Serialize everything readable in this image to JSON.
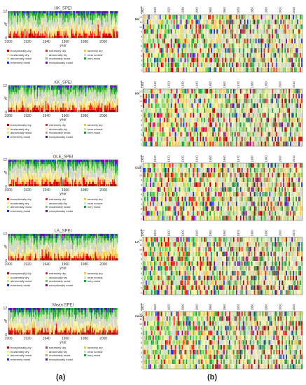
{
  "figure": {
    "label_a": "(a)",
    "label_b": "(b)"
  },
  "colors": {
    "exceptionally dry": "#c00000",
    "extremely dry": "#ff2020",
    "severely dry": "#f7c64a",
    "moderately dry": "#fde78f",
    "abnormally dry": "#f5f5b0",
    "near normal": "#d6d6d6",
    "abnormally moist": "#c5e7a0",
    "moderately moist": "#6fcf5a",
    "very moist": "#1ea040",
    "extremely moist": "#2233cc",
    "exceptionally moist": "#8b00b5"
  },
  "legend": {
    "items": [
      "exceptionally dry",
      "extremely dry",
      "severely dry",
      "moderately dry",
      "abnormally dry",
      "near normal",
      "abnormally moist",
      "moderately moist",
      "very moist",
      "extremely moist",
      "exceptionally moist"
    ]
  },
  "months": [
    "12",
    "11",
    "10",
    "9",
    "8",
    "7",
    "6",
    "5",
    "4",
    "3",
    "2",
    "1"
  ],
  "heatmap_year_ticks": [
    "1901",
    "1910",
    "1920",
    "1930",
    "1940",
    "1950",
    "1960",
    "1970",
    "1980",
    "1990",
    "2000",
    "2010"
  ],
  "heatmap_header": "month",
  "chart_data": [
    {
      "type": "area",
      "title": "HK_SPEI",
      "xlabel": "year",
      "ylabel": "n",
      "xlim": [
        1900,
        2015
      ],
      "ylim": [
        0,
        12
      ],
      "x_ticks": [
        "1900",
        "1920",
        "1940",
        "1960",
        "1980",
        "2000"
      ],
      "y_ticks": [
        "0",
        "6",
        "12"
      ],
      "stacked_order": [
        "exceptionally dry",
        "extremely dry",
        "severely dry",
        "moderately dry",
        "abnormally dry",
        "near normal",
        "abnormally moist",
        "moderately moist",
        "very moist",
        "extremely moist",
        "exceptionally moist"
      ],
      "grid": false,
      "seed": 11
    },
    {
      "type": "area",
      "title": "KK_SPEI",
      "xlabel": "year",
      "ylabel": "n",
      "xlim": [
        1900,
        2015
      ],
      "ylim": [
        0,
        12
      ],
      "x_ticks": [
        "1900",
        "1920",
        "1940",
        "1960",
        "1980",
        "2000"
      ],
      "y_ticks": [
        "0",
        "6",
        "12"
      ],
      "grid": false,
      "seed": 23
    },
    {
      "type": "area",
      "title": "OLE_SPEI",
      "xlabel": "year",
      "ylabel": "n",
      "xlim": [
        1900,
        2015
      ],
      "ylim": [
        0,
        12
      ],
      "x_ticks": [
        "1900",
        "1920",
        "1940",
        "1960",
        "1980",
        "2000"
      ],
      "y_ticks": [
        "0",
        "6",
        "12"
      ],
      "grid": false,
      "seed": 37
    },
    {
      "type": "area",
      "title": "LA_SPEI",
      "xlabel": "year",
      "ylabel": "n",
      "xlim": [
        1900,
        2015
      ],
      "ylim": [
        0,
        12
      ],
      "x_ticks": [
        "1900",
        "1920",
        "1940",
        "1960",
        "1980",
        "2000"
      ],
      "y_ticks": [
        "0",
        "6",
        "12"
      ],
      "grid": false,
      "seed": 41
    },
    {
      "type": "area",
      "title": "Mean SPEI",
      "xlabel": "year",
      "ylabel": "n",
      "xlim": [
        1900,
        2015
      ],
      "ylim": [
        0,
        12
      ],
      "x_ticks": [
        "1900",
        "1920",
        "1940",
        "1960",
        "1980",
        "2000"
      ],
      "y_ticks": [
        "0",
        "6",
        "12"
      ],
      "grid": false,
      "seed": 53
    },
    {
      "type": "heatmap",
      "title": "HK",
      "x_range": [
        1901,
        2015
      ],
      "y_categories": [
        "12",
        "11",
        "10",
        "9",
        "8",
        "7",
        "6",
        "5",
        "4",
        "3",
        "2",
        "1"
      ],
      "seed": 11
    },
    {
      "type": "heatmap",
      "title": "KK",
      "x_range": [
        1901,
        2015
      ],
      "y_categories": [
        "12",
        "11",
        "10",
        "9",
        "8",
        "7",
        "6",
        "5",
        "4",
        "3",
        "2",
        "1"
      ],
      "seed": 23
    },
    {
      "type": "heatmap",
      "title": "OLE",
      "x_range": [
        1901,
        2015
      ],
      "y_categories": [
        "12",
        "11",
        "10",
        "9",
        "8",
        "7",
        "6",
        "5",
        "4",
        "3",
        "2",
        "1"
      ],
      "seed": 37
    },
    {
      "type": "heatmap",
      "title": "LA",
      "x_range": [
        1901,
        2015
      ],
      "y_categories": [
        "12",
        "11",
        "10",
        "9",
        "8",
        "7",
        "6",
        "5",
        "4",
        "3",
        "2",
        "1"
      ],
      "seed": 41
    },
    {
      "type": "heatmap",
      "title": "mean",
      "x_range": [
        1901,
        2015
      ],
      "y_categories": [
        "12",
        "11",
        "10",
        "9",
        "8",
        "7",
        "6",
        "5",
        "4",
        "3",
        "2",
        "1"
      ],
      "seed": 53
    }
  ]
}
